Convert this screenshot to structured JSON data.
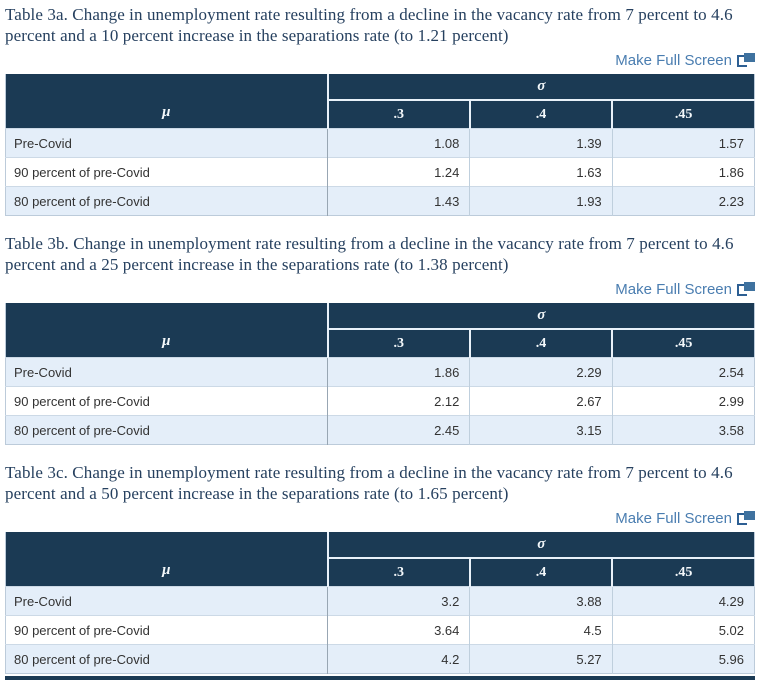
{
  "fullscreen_link": {
    "label": "Make Full Screen"
  },
  "header": {
    "row_var": "μ",
    "col_var": "σ",
    "columns": [
      ".3",
      ".4",
      ".45"
    ]
  },
  "colors": {
    "header_bg": "#1b3a54",
    "alt_row": "#e4eef9",
    "link_blue": "#4a7db0",
    "title_navy": "#26405f"
  },
  "tables": [
    {
      "id": "3a",
      "title": "Table 3a. Change in unemployment rate resulting from a decline in the vacancy rate from 7 percent to 4.6 percent and a 10 percent increase in the separations rate (to 1.21 percent)",
      "rows": [
        {
          "label": "Pre-Covid",
          "values": [
            "1.08",
            "1.39",
            "1.57"
          ]
        },
        {
          "label": "90 percent of pre-Covid",
          "values": [
            "1.24",
            "1.63",
            "1.86"
          ]
        },
        {
          "label": "80 percent of pre-Covid",
          "values": [
            "1.43",
            "1.93",
            "2.23"
          ]
        }
      ]
    },
    {
      "id": "3b",
      "title": "Table 3b. Change in unemployment rate resulting from a decline in the vacancy rate from 7 percent to 4.6 percent and a 25 percent increase in the separations rate (to 1.38 percent)",
      "rows": [
        {
          "label": "Pre-Covid",
          "values": [
            "1.86",
            "2.29",
            "2.54"
          ]
        },
        {
          "label": "90 percent of pre-Covid",
          "values": [
            "2.12",
            "2.67",
            "2.99"
          ]
        },
        {
          "label": "80 percent of pre-Covid",
          "values": [
            "2.45",
            "3.15",
            "3.58"
          ]
        }
      ]
    },
    {
      "id": "3c",
      "title": "Table 3c. Change in unemployment rate resulting from a decline in the vacancy rate from 7 percent to 4.6 percent and a 50 percent increase in the separations rate (to 1.65 percent)",
      "rows": [
        {
          "label": "Pre-Covid",
          "values": [
            "3.2",
            "3.88",
            "4.29"
          ]
        },
        {
          "label": "90 percent of pre-Covid",
          "values": [
            "3.64",
            "4.5",
            "5.02"
          ]
        },
        {
          "label": "80 percent of pre-Covid",
          "values": [
            "4.2",
            "5.27",
            "5.96"
          ]
        }
      ]
    }
  ]
}
